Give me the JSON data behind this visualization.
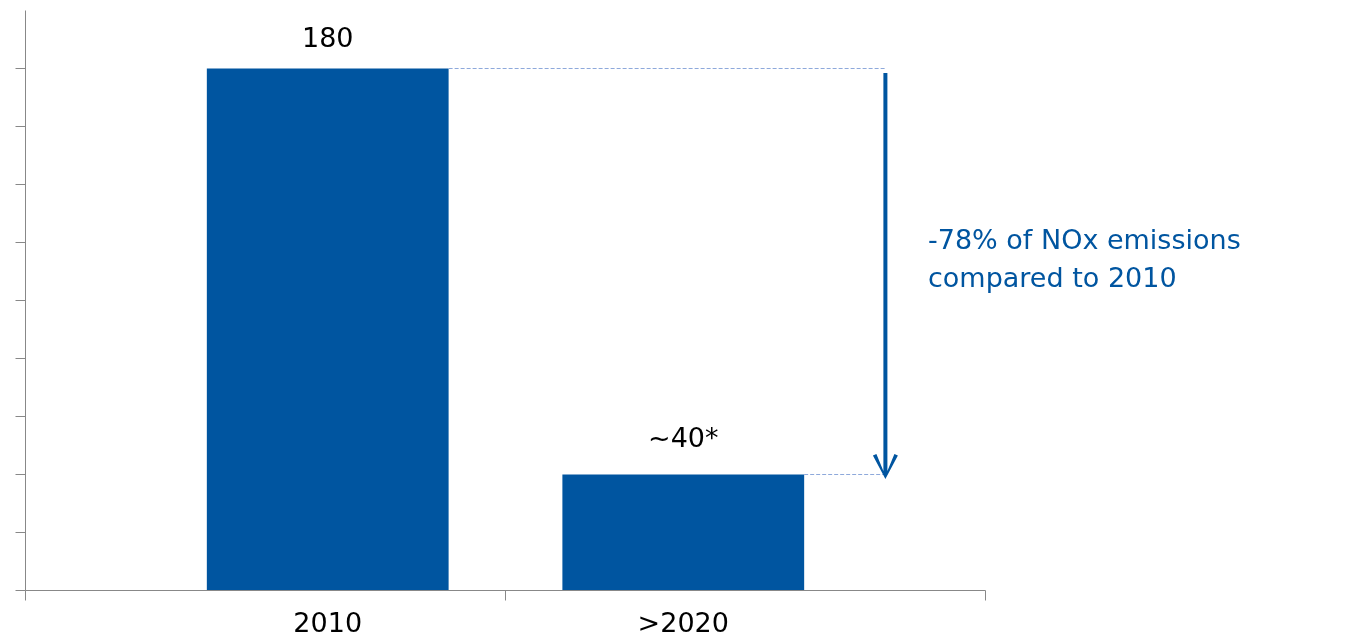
{
  "chart_data": {
    "type": "bar",
    "categories": [
      "2010",
      ">2020"
    ],
    "values": [
      180,
      40
    ],
    "value_labels": [
      "180",
      "~40*"
    ],
    "color": "#0055a0",
    "ylim": [
      0,
      200
    ],
    "yticks": [
      {
        "value": 0,
        "label": null
      },
      {
        "value": 20,
        "label": null
      },
      {
        "value": 40,
        "label": null
      },
      {
        "value": 60,
        "label": null
      },
      {
        "value": 80,
        "label": null
      },
      {
        "value": 100,
        "label": null
      },
      {
        "value": 120,
        "label": null
      },
      {
        "value": 140,
        "label": null
      },
      {
        "value": 160,
        "label": null
      },
      {
        "value": 180,
        "label": null
      }
    ],
    "ref_lines": [
      {
        "axis": "y",
        "value": 180,
        "color": "#8ea9db",
        "line_style": "dashed"
      },
      {
        "axis": "y",
        "value": 40,
        "color": "#8ea9db",
        "line_style": "dashed"
      }
    ],
    "annotations": [
      "-78% of NOx emissions compared to 2010"
    ],
    "grid": false
  }
}
